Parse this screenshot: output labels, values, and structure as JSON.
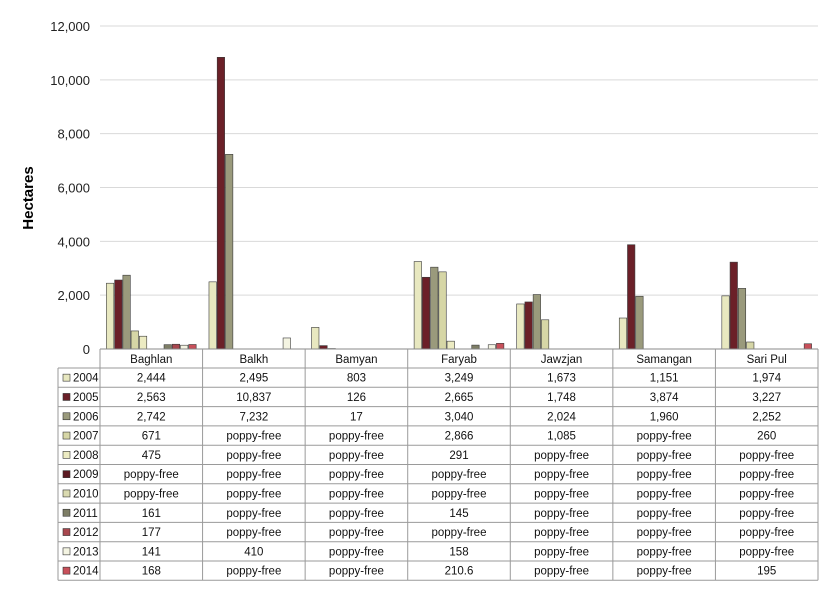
{
  "chart_data": {
    "type": "bar",
    "ylabel": "Hectares",
    "ylim": [
      0,
      12000
    ],
    "yticks": [
      0,
      2000,
      4000,
      6000,
      8000,
      10000,
      12000
    ],
    "ytick_labels": [
      "0",
      "2,000",
      "4,000",
      "6,000",
      "8,000",
      "10,000",
      "12,000"
    ],
    "grid": true,
    "categories": [
      "Baghlan",
      "Balkh",
      "Bamyan",
      "Faryab",
      "Jawzjan",
      "Samangan",
      "Sari Pul"
    ],
    "series": [
      {
        "name": "2004",
        "color": "#e8e8c0",
        "values": [
          2444,
          2495,
          803,
          3249,
          1673,
          1151,
          1974
        ],
        "labels": [
          "2,444",
          "2,495",
          "803",
          "3,249",
          "1,673",
          "1,151",
          "1,974"
        ]
      },
      {
        "name": "2005",
        "color": "#6b2028",
        "values": [
          2563,
          10837,
          126,
          2665,
          1748,
          3874,
          3227
        ],
        "labels": [
          "2,563",
          "10,837",
          "126",
          "2,665",
          "1,748",
          "3,874",
          "3,227"
        ]
      },
      {
        "name": "2006",
        "color": "#9a9a7c",
        "values": [
          2742,
          7232,
          17,
          3040,
          2024,
          1960,
          2252
        ],
        "labels": [
          "2,742",
          "7,232",
          "17",
          "3,040",
          "2,024",
          "1,960",
          "2,252"
        ]
      },
      {
        "name": "2007",
        "color": "#d6d6a6",
        "values": [
          671,
          0,
          0,
          2866,
          1085,
          0,
          260
        ],
        "labels": [
          "671",
          "poppy-free",
          "poppy-free",
          "2,866",
          "1,085",
          "poppy-free",
          "260"
        ]
      },
      {
        "name": "2008",
        "color": "#ecebc2",
        "values": [
          475,
          0,
          0,
          291,
          0,
          0,
          0
        ],
        "labels": [
          "475",
          "poppy-free",
          "poppy-free",
          "291",
          "poppy-free",
          "poppy-free",
          "poppy-free"
        ]
      },
      {
        "name": "2009",
        "color": "#5c1a22",
        "values": [
          0,
          0,
          0,
          0,
          0,
          0,
          0
        ],
        "labels": [
          "poppy-free",
          "poppy-free",
          "poppy-free",
          "poppy-free",
          "poppy-free",
          "poppy-free",
          "poppy-free"
        ]
      },
      {
        "name": "2010",
        "color": "#dadab0",
        "values": [
          0,
          0,
          0,
          0,
          0,
          0,
          0
        ],
        "labels": [
          "poppy-free",
          "poppy-free",
          "poppy-free",
          "poppy-free",
          "poppy-free",
          "poppy-free",
          "poppy-free"
        ]
      },
      {
        "name": "2011",
        "color": "#7e7e66",
        "values": [
          161,
          0,
          0,
          145,
          0,
          0,
          0
        ],
        "labels": [
          "161",
          "poppy-free",
          "poppy-free",
          "145",
          "poppy-free",
          "poppy-free",
          "poppy-free"
        ]
      },
      {
        "name": "2012",
        "color": "#a8474e",
        "values": [
          177,
          0,
          0,
          0,
          0,
          0,
          0
        ],
        "labels": [
          "177",
          "poppy-free",
          "poppy-free",
          "poppy-free",
          "poppy-free",
          "poppy-free",
          "poppy-free"
        ]
      },
      {
        "name": "2013",
        "color": "#f4f4e2",
        "values": [
          141,
          410,
          0,
          158,
          0,
          0,
          0
        ],
        "labels": [
          "141",
          "410",
          "poppy-free",
          "158",
          "poppy-free",
          "poppy-free",
          "poppy-free"
        ]
      },
      {
        "name": "2014",
        "color": "#c8505a",
        "values": [
          168,
          0,
          0,
          210.6,
          0,
          0,
          195
        ],
        "labels": [
          "168",
          "poppy-free",
          "poppy-free",
          "210.6",
          "poppy-free",
          "poppy-free",
          "195"
        ]
      }
    ]
  }
}
